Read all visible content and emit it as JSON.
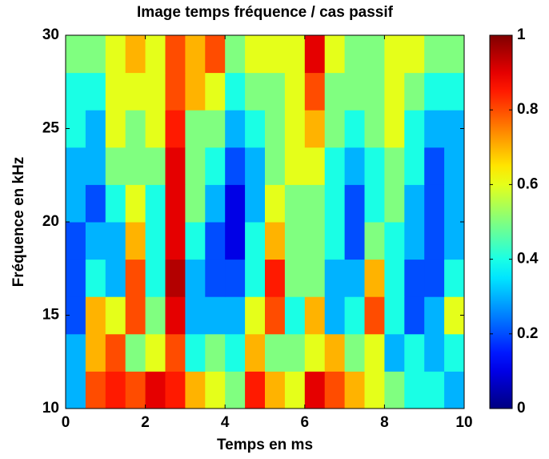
{
  "chart_data": {
    "type": "heatmap",
    "title": "Image temps fréquence / cas passif",
    "xlabel": "Temps en ms",
    "ylabel": "Fréquence en kHz",
    "colormap": "jet",
    "x_bins": [
      0,
      0.5,
      1,
      1.5,
      2,
      2.5,
      3,
      3.5,
      4,
      4.5,
      5,
      5.5,
      6,
      6.5,
      7,
      7.5,
      8,
      8.5,
      9,
      9.5,
      10
    ],
    "y_bins": [
      10,
      12,
      14,
      16,
      18,
      20,
      22,
      24,
      26,
      28,
      30
    ],
    "z": [
      [
        0.3,
        0.8,
        0.85,
        0.8,
        0.9,
        0.85,
        0.7,
        0.6,
        0.5,
        0.85,
        0.7,
        0.6,
        0.9,
        0.8,
        0.7,
        0.6,
        0.5,
        0.4,
        0.4,
        0.3
      ],
      [
        0.3,
        0.7,
        0.8,
        0.5,
        0.6,
        0.8,
        0.4,
        0.5,
        0.4,
        0.7,
        0.5,
        0.5,
        0.6,
        0.7,
        0.5,
        0.6,
        0.3,
        0.4,
        0.3,
        0.4
      ],
      [
        0.2,
        0.7,
        0.6,
        0.8,
        0.5,
        0.9,
        0.3,
        0.3,
        0.3,
        0.6,
        0.8,
        0.4,
        0.7,
        0.3,
        0.4,
        0.8,
        0.4,
        0.2,
        0.3,
        0.6
      ],
      [
        0.2,
        0.4,
        0.3,
        0.8,
        0.4,
        0.95,
        0.3,
        0.2,
        0.2,
        0.4,
        0.85,
        0.5,
        0.5,
        0.3,
        0.3,
        0.7,
        0.4,
        0.2,
        0.2,
        0.4
      ],
      [
        0.2,
        0.3,
        0.3,
        0.7,
        0.4,
        0.9,
        0.4,
        0.2,
        0.1,
        0.4,
        0.7,
        0.5,
        0.5,
        0.4,
        0.2,
        0.5,
        0.4,
        0.3,
        0.2,
        0.3
      ],
      [
        0.3,
        0.2,
        0.4,
        0.6,
        0.4,
        0.9,
        0.5,
        0.3,
        0.1,
        0.3,
        0.6,
        0.5,
        0.5,
        0.4,
        0.2,
        0.4,
        0.5,
        0.3,
        0.2,
        0.3
      ],
      [
        0.3,
        0.3,
        0.5,
        0.5,
        0.5,
        0.9,
        0.5,
        0.4,
        0.2,
        0.3,
        0.5,
        0.6,
        0.6,
        0.4,
        0.3,
        0.4,
        0.5,
        0.4,
        0.2,
        0.3
      ],
      [
        0.4,
        0.3,
        0.6,
        0.5,
        0.6,
        0.85,
        0.5,
        0.5,
        0.3,
        0.4,
        0.5,
        0.6,
        0.7,
        0.5,
        0.4,
        0.5,
        0.6,
        0.4,
        0.3,
        0.3
      ],
      [
        0.4,
        0.4,
        0.6,
        0.6,
        0.6,
        0.8,
        0.7,
        0.6,
        0.4,
        0.5,
        0.5,
        0.6,
        0.8,
        0.5,
        0.5,
        0.5,
        0.6,
        0.5,
        0.4,
        0.4
      ],
      [
        0.5,
        0.5,
        0.6,
        0.7,
        0.6,
        0.8,
        0.7,
        0.8,
        0.5,
        0.6,
        0.6,
        0.6,
        0.9,
        0.6,
        0.5,
        0.5,
        0.6,
        0.6,
        0.5,
        0.5
      ]
    ],
    "xlim": [
      0,
      10
    ],
    "xticks": [
      0,
      2,
      4,
      6,
      8,
      10
    ],
    "ylim": [
      10,
      30
    ],
    "yticks": [
      10,
      15,
      20,
      25,
      30
    ],
    "clim": [
      0,
      1
    ],
    "cticks": [
      0,
      0.2,
      0.4,
      0.6,
      0.8,
      1
    ]
  }
}
